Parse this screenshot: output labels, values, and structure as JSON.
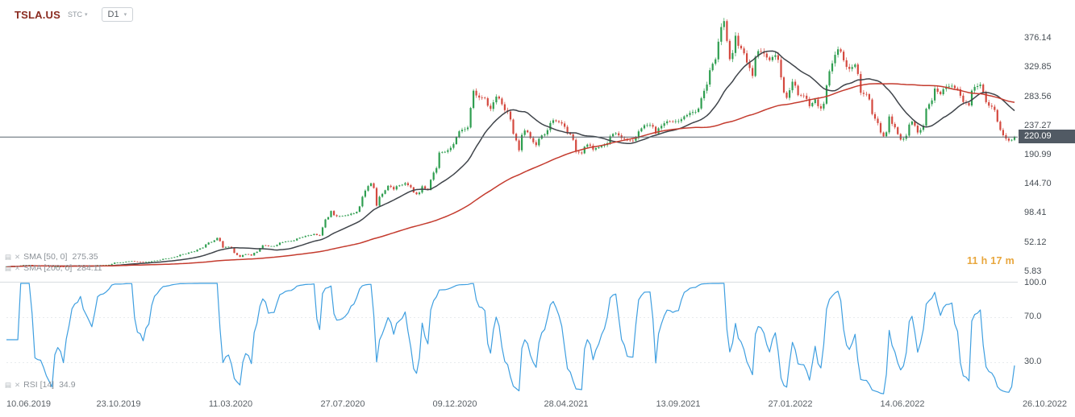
{
  "header": {
    "symbol": "TSLA.US",
    "market_label": "STC",
    "timeframe": "D1"
  },
  "price_pane": {
    "axis_labels": [
      "376.14",
      "329.85",
      "283.56",
      "237.27",
      "190.99",
      "144.70",
      "98.41",
      "52.12",
      "5.83"
    ],
    "current_price": "220.09",
    "countdown": "11 h 17 m",
    "indicators": [
      {
        "label": "SMA [50, 0]",
        "value": "275.35"
      },
      {
        "label": "SMA [200, 0]",
        "value": "284.11"
      }
    ]
  },
  "rsi_pane": {
    "axis_labels": [
      "100.0",
      "70.0",
      "30.0"
    ],
    "indicator_label": "RSI [14]",
    "indicator_value": "34.9"
  },
  "x_axis": {
    "labels": [
      "10.06.2019",
      "23.10.2019",
      "11.03.2020",
      "27.07.2020",
      "09.12.2020",
      "28.04.2021",
      "13.09.2021",
      "27.01.2022",
      "14.06.2022",
      "26.10.2022"
    ]
  },
  "colors": {
    "candle_up": "#2f9e50",
    "candle_down": "#d4493f",
    "sma50": "#3f444a",
    "sma200": "#c43b2e",
    "rsi": "#3f9fe0",
    "last_price_line": "#59636d",
    "last_price_badge": "#515a64",
    "accent_countdown": "#e8a63c",
    "symbol_text": "#8a2b20"
  },
  "chart_data": {
    "type": "candlestick",
    "symbol": "TSLA.US",
    "timeframe": "D1",
    "x_tick_labels": [
      "10.06.2019",
      "23.10.2019",
      "11.03.2020",
      "27.07.2020",
      "09.12.2020",
      "28.04.2021",
      "13.09.2021",
      "27.01.2022",
      "14.06.2022",
      "26.10.2022"
    ],
    "y_ticks": [
      376.14,
      329.85,
      283.56,
      237.27,
      190.99,
      144.7,
      98.41,
      52.12,
      5.83
    ],
    "ylim": [
      5.83,
      427
    ],
    "last_price": 220.09,
    "close_values_approx": [
      14.5,
      14.9,
      15.1,
      16.9,
      17.2,
      15.7,
      15.6,
      15.0,
      14.0,
      14.7,
      14.3,
      15.0,
      15.9,
      16.4,
      16.2,
      16.1,
      16.9,
      17.1,
      17.5,
      20.9,
      21.0,
      22.4,
      23.3,
      22.2,
      22.0,
      22.4,
      23.9,
      25.3,
      27.2,
      28.6,
      31.0,
      34.3,
      36.9,
      38.6,
      43.4,
      49.7,
      53.6,
      60.1,
      44.6,
      46.1,
      36.1,
      29.8,
      34.3,
      32.1,
      38.2,
      48.4,
      46.9,
      47.1,
      52.5,
      54.5,
      55.1,
      59.0,
      61.5,
      64.0,
      66.3,
      63.9,
      89.4,
      102.8,
      94.4,
      95.0,
      96.6,
      99.1,
      110.0,
      135.0,
      146.7,
      111.2,
      129.9,
      142.7,
      136.9,
      143.3,
      146.9,
      140.3,
      129.4,
      141.9,
      136.2,
      163.6,
      195.3,
      196.5,
      203.0,
      219.9,
      231.6,
      235.2,
      293.5,
      282.7,
      281.6,
      264.6,
      284.2,
      272.1,
      260.4,
      225.2,
      199.0,
      230.5,
      218.4,
      207.0,
      222.6,
      230.9,
      246.6,
      243.6,
      236.3,
      224.3,
      196.7,
      194.2,
      208.1,
      200.2,
      203.9,
      207.2,
      221.2,
      226.1,
      218.5,
      214.6,
      214.4,
      229.1,
      238.8,
      239.2,
      225.6,
      237.9,
      245.0,
      244.7,
      245.2,
      252.9,
      258.4,
      260.0,
      281.5,
      303.3,
      336.3,
      371.3,
      404.0,
      343.6,
      380.7,
      360.6,
      338.3,
      317.0,
      356.3,
      352.5,
      342.0,
      349.8,
      314.7,
      282.3,
      307.8,
      286.6,
      285.6,
      269.0,
      279.7,
      265.3,
      301.8,
      337.0,
      359.3,
      341.8,
      328.2,
      335.1,
      290.2,
      288.0,
      256.5,
      242.2,
      221.3,
      252.7,
      235.5,
      216.0,
      222.2,
      244.6,
      227.2,
      238.2,
      272.2,
      297.0,
      288.0,
      300.0,
      301.4,
      296.0,
      275.6,
      270.2,
      299.6,
      303.3,
      275.3,
      268.2,
      244.5,
      223.0,
      214.4,
      220.1
    ],
    "overlays": [
      {
        "type": "sma",
        "period": 50,
        "shift": 0,
        "current_value": 275.35
      },
      {
        "type": "sma",
        "period": 200,
        "shift": 0,
        "current_value": 284.11
      }
    ],
    "lower_panel": {
      "type": "rsi",
      "period": 14,
      "current_value": 34.9,
      "y_ticks": [
        100.0,
        70.0,
        30.0
      ]
    }
  }
}
